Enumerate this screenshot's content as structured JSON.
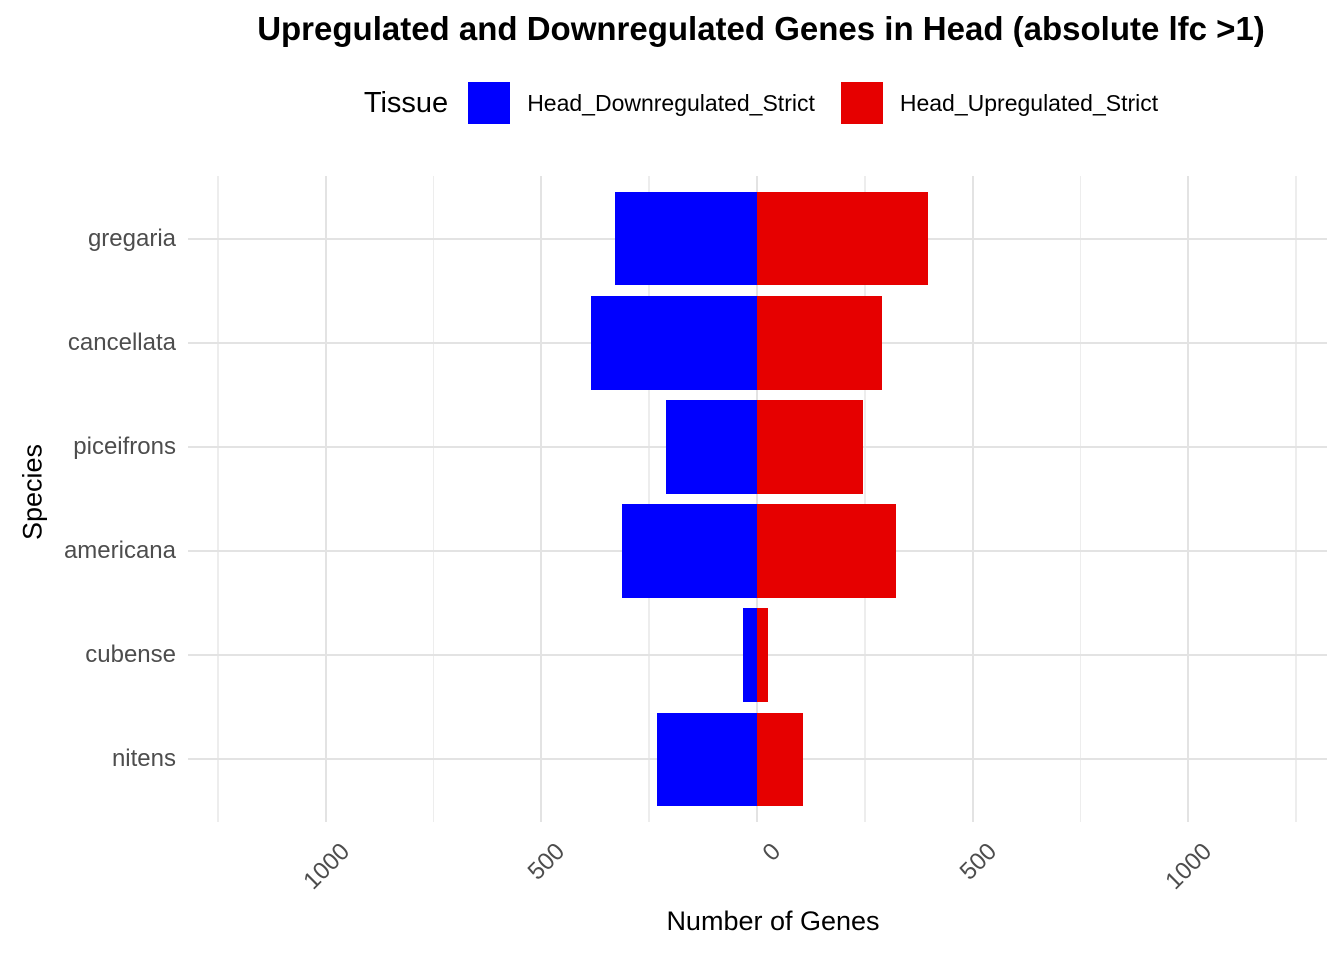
{
  "chart_data": {
    "type": "bar",
    "orientation": "horizontal-diverging",
    "title": "Upregulated and Downregulated Genes in Head (absolute lfc >1)",
    "legend_title": "Tissue",
    "legend_position": "top",
    "xlabel": "Number of Genes",
    "ylabel": "Species",
    "categories": [
      "gregaria",
      "cancellata",
      "piceifrons",
      "americana",
      "cubense",
      "nitens"
    ],
    "series": [
      {
        "name": "Head_Downregulated_Strict",
        "color": "#0000ff",
        "direction": "negative",
        "values": [
          330,
          386,
          211,
          313,
          32,
          233
        ]
      },
      {
        "name": "Head_Upregulated_Strict",
        "color": "#e60000",
        "direction": "positive",
        "values": [
          396,
          290,
          245,
          322,
          26,
          106
        ]
      }
    ],
    "x_ticks": [
      {
        "value": -1000,
        "label": "1000"
      },
      {
        "value": -500,
        "label": "500"
      },
      {
        "value": 0,
        "label": "0"
      },
      {
        "value": 500,
        "label": "500"
      },
      {
        "value": 1000,
        "label": "1000"
      }
    ],
    "x_minor_ticks": [
      -1250,
      -750,
      -250,
      250,
      750,
      1250
    ],
    "xlim": [
      -1250,
      1322
    ],
    "grid": true,
    "background": "#ffffff",
    "bar_width_ratio": 0.9
  }
}
